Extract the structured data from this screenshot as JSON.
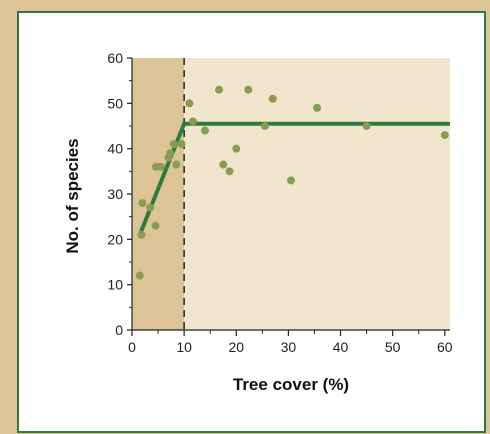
{
  "chart_data": {
    "type": "scatter",
    "title": "",
    "xlabel": "Tree cover (%)",
    "ylabel": "No. of species",
    "xlim": [
      0,
      61
    ],
    "ylim": [
      0,
      60
    ],
    "xticks": [
      0,
      10,
      20,
      30,
      40,
      50,
      60
    ],
    "yticks": [
      0,
      10,
      20,
      30,
      40,
      50,
      60
    ],
    "threshold_x": 10,
    "grid": false,
    "colors": {
      "points": "#8c9b54",
      "fit_line": "#2e7a3f",
      "shade_low": "#dcc496",
      "shade_high": "#f1e5cd",
      "frame": "#dcc496",
      "panel_border": "#2e7a3f"
    },
    "points": [
      {
        "x": 1.5,
        "y": 12
      },
      {
        "x": 1.8,
        "y": 21
      },
      {
        "x": 2,
        "y": 28
      },
      {
        "x": 3.5,
        "y": 27
      },
      {
        "x": 4.5,
        "y": 23
      },
      {
        "x": 4.6,
        "y": 36
      },
      {
        "x": 5.5,
        "y": 36
      },
      {
        "x": 7,
        "y": 38
      },
      {
        "x": 7.3,
        "y": 39
      },
      {
        "x": 8,
        "y": 41
      },
      {
        "x": 8.5,
        "y": 36.5
      },
      {
        "x": 9.5,
        "y": 41
      },
      {
        "x": 11,
        "y": 50
      },
      {
        "x": 11.7,
        "y": 46
      },
      {
        "x": 14,
        "y": 44
      },
      {
        "x": 16.7,
        "y": 53
      },
      {
        "x": 17.5,
        "y": 36.5
      },
      {
        "x": 18.7,
        "y": 35
      },
      {
        "x": 20,
        "y": 40
      },
      {
        "x": 22.3,
        "y": 53
      },
      {
        "x": 25.5,
        "y": 45
      },
      {
        "x": 27,
        "y": 51
      },
      {
        "x": 30.5,
        "y": 33
      },
      {
        "x": 35.5,
        "y": 49
      },
      {
        "x": 45,
        "y": 45
      },
      {
        "x": 60,
        "y": 43
      }
    ],
    "fit_line": [
      {
        "x": 1.5,
        "y": 21
      },
      {
        "x": 10,
        "y": 45.5
      },
      {
        "x": 61,
        "y": 45.5
      }
    ]
  }
}
